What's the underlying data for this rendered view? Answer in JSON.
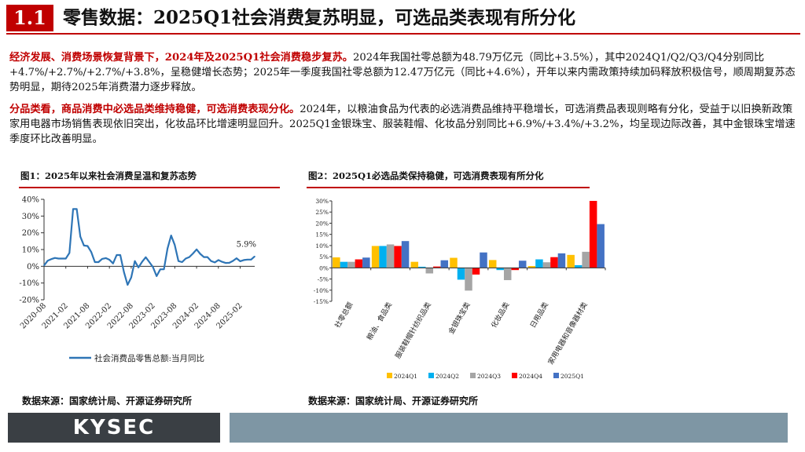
{
  "header": {
    "section_number": "1.1",
    "title": "零售数据：2025Q1社会消费复苏明显，可选品类表现有所分化",
    "accent_color": "#c00000"
  },
  "paragraphs": [
    {
      "lead": "经济发展、消费场景恢复背景下，2024年及2025Q1社会消费稳步复苏。",
      "body": "2024年我国社零总额为48.79万亿元（同比+3.5%），其中2024Q1/Q2/Q3/Q4分别同比+4.7%/+2.7%/+2.7%/+3.8%，呈稳健增长态势；2025年一季度我国社零总额为12.47万亿元（同比+4.6%），开年以来内需政策持续加码释放积极信号，顺周期复苏态势明显，期待2025年消费潜力逐步释放。"
    },
    {
      "lead": "分品类看，商品消费中必选品类维持稳健，可选消费表现分化。",
      "body": "2024年，以粮油食品为代表的必选消费品维持平稳增长，可选消费品表现则略有分化，受益于以旧换新政策家用电器市场销售表现依旧突出，化妆品环比增速明显回升。2025Q1金银珠宝、服装鞋帽、化妆品分别同比+6.9%/+3.4%/+3.2%，均呈现边际改善，其中金银珠宝增速季度环比改善明显。"
    }
  ],
  "figures": {
    "fig1_title": "图1：2025年以来社会消费呈温和复苏态势",
    "fig2_title": "图2：2025Q1必选品类保持稳健，可选消费表现有所分化",
    "fig1_source": "数据来源：国家统计局、开源证券研究所",
    "fig2_source": "数据来源：国家统计局、开源证券研究所"
  },
  "footer": {
    "logo_text": "KYSEC",
    "logo_bg": "#3a3f44",
    "bar_color": "#7e96a4"
  },
  "chart_data": [
    {
      "type": "line",
      "title": "图1：2025年以来社会消费呈温和复苏态势",
      "x_start": "2020-08",
      "x_step": "1 month",
      "x_tick_labels": [
        "2020-08",
        "2021-02",
        "2021-08",
        "2022-02",
        "2022-08",
        "2023-02",
        "2023-08",
        "2024-02",
        "2024-08",
        "2025-02"
      ],
      "ylim": [
        -20,
        40
      ],
      "y_tick_labels": [
        "-20%",
        "-10%",
        "0%",
        "10%",
        "20%",
        "30%",
        "40%"
      ],
      "series": [
        {
          "name": "社会消费品零售总额:当月同比",
          "color": "#2e75b6",
          "values": [
            0.5,
            3.3,
            4.3,
            5.0,
            4.6,
            4.6,
            4.6,
            8.0,
            34.2,
            34.2,
            17.7,
            12.4,
            12.1,
            8.5,
            2.5,
            2.5,
            4.4,
            4.9,
            3.9,
            1.7,
            6.7,
            6.7,
            -3.5,
            -11.1,
            -6.7,
            3.1,
            -0.7,
            2.7,
            5.4,
            2.5,
            -0.5,
            -5.9,
            -1.8,
            -1.8,
            10.6,
            18.4,
            12.7,
            3.1,
            2.5,
            4.6,
            5.5,
            7.6,
            10.1,
            7.4,
            5.5,
            5.5,
            3.1,
            2.3,
            3.7,
            2.7,
            2.0,
            2.1,
            3.2,
            4.8,
            3.0,
            3.7,
            4.0,
            4.0,
            5.9
          ],
          "end_label": "5.9%"
        }
      ],
      "legend": "bottom",
      "grid": false
    },
    {
      "type": "bar",
      "title": "图2：2025Q1必选品类保持稳健，可选消费表现有所分化",
      "categories": [
        "社零总额",
        "粮油、食品类",
        "服装鞋帽针纺织品类",
        "金银珠宝类",
        "化妆品类",
        "日用品类",
        "家用电器和音像器材类"
      ],
      "ylim": [
        -15,
        30
      ],
      "y_tick_labels": [
        "-15%",
        "-10%",
        "-5%",
        "0%",
        "5%",
        "10%",
        "15%",
        "20%",
        "25%",
        "30%"
      ],
      "series": [
        {
          "name": "2024Q1",
          "color": "#ffc000",
          "values": [
            4.7,
            9.8,
            2.7,
            4.5,
            3.5,
            0.8,
            5.8
          ]
        },
        {
          "name": "2024Q2",
          "color": "#00b0f0",
          "values": [
            2.7,
            9.8,
            0.5,
            -5.3,
            -1.0,
            3.8,
            1.2
          ]
        },
        {
          "name": "2024Q3",
          "color": "#a5a5a5",
          "values": [
            2.7,
            10.5,
            -2.5,
            -10.2,
            -5.5,
            2.5,
            7.2
          ]
        },
        {
          "name": "2024Q4",
          "color": "#ff0000",
          "values": [
            3.8,
            9.8,
            0.6,
            -3.0,
            -1.0,
            4.8,
            30.0
          ]
        },
        {
          "name": "2025Q1",
          "color": "#4472c4",
          "values": [
            4.6,
            12.0,
            3.4,
            6.9,
            3.2,
            6.5,
            19.6
          ]
        }
      ],
      "legend": "bottom",
      "grid": false
    }
  ]
}
